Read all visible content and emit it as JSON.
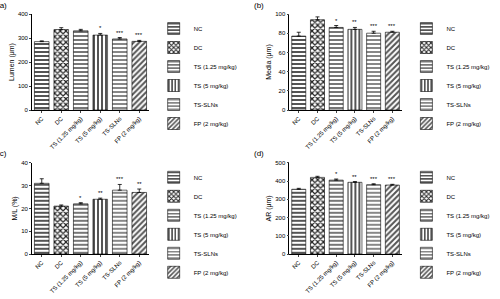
{
  "chart_data": [
    {
      "type": "bar",
      "title": "(a)",
      "y_label": "Lumen (μm)",
      "categories": [
        "NC",
        "DC",
        "TS (1.25 mg/kg)",
        "TS (5 mg/kg)",
        "TS-SLNs",
        "FP (2 mg/kg)"
      ],
      "values": [
        285,
        335,
        330,
        312,
        296,
        286
      ],
      "errors": [
        3,
        8,
        6,
        7,
        6,
        4
      ],
      "significance": [
        null,
        null,
        null,
        "*",
        "***",
        "***"
      ],
      "colors": [
        "#555555",
        "#222222",
        "#777777",
        "#555555",
        "#888888",
        "#555555"
      ],
      "ylim": [
        0,
        400
      ],
      "yticks": [
        0,
        100,
        200,
        300,
        400
      ],
      "grid": false,
      "legend": "right"
    },
    {
      "type": "bar",
      "title": "(b)",
      "y_label": "Media (μm)",
      "categories": [
        "NC",
        "DC",
        "TS (1.25 mg/kg)",
        "TS (5 mg/kg)",
        "TS-SLNs",
        "FP (2 mg/kg)"
      ],
      "values": [
        77,
        94,
        86,
        84,
        80,
        81
      ],
      "errors": [
        4,
        3,
        2,
        2,
        2,
        1
      ],
      "significance": [
        null,
        null,
        "*",
        "**",
        "***",
        "***"
      ],
      "colors": [
        "#555555",
        "#222222",
        "#777777",
        "#555555",
        "#888888",
        "#555555"
      ],
      "ylim": [
        0,
        100
      ],
      "yticks": [
        0,
        20,
        40,
        60,
        80,
        100
      ],
      "grid": false,
      "legend": "right"
    },
    {
      "type": "bar",
      "title": "(c)",
      "y_label": "M/L (%)",
      "categories": [
        "NC",
        "DC",
        "TS (1.25 mg/kg)",
        "TS (5 mg/kg)",
        "TS-SLNs",
        "FP (2 mg/kg)"
      ],
      "values": [
        31,
        21,
        22,
        24,
        28,
        27
      ],
      "errors": [
        2,
        0.5,
        0.5,
        0.5,
        2.5,
        1.5
      ],
      "significance": [
        null,
        null,
        "*",
        "**",
        "***",
        "**"
      ],
      "colors": [
        "#555555",
        "#222222",
        "#777777",
        "#555555",
        "#888888",
        "#555555"
      ],
      "ylim": [
        0,
        40
      ],
      "yticks": [
        0,
        10,
        20,
        30,
        40
      ],
      "grid": false,
      "legend": "right"
    },
    {
      "type": "bar",
      "title": "(d)",
      "y_label": "AR (μm)",
      "categories": [
        "NC",
        "DC",
        "TS (1.25 mg/kg)",
        "TS (5 mg/kg)",
        "TS-SLNs",
        "FP (2 mg/kg)"
      ],
      "values": [
        355,
        420,
        405,
        393,
        380,
        378
      ],
      "errors": [
        5,
        6,
        6,
        4,
        5,
        4
      ],
      "significance": [
        null,
        null,
        "*",
        "**",
        "***",
        "***"
      ],
      "colors": [
        "#555555",
        "#222222",
        "#777777",
        "#555555",
        "#888888",
        "#555555"
      ],
      "ylim": [
        0,
        500
      ],
      "yticks": [
        0,
        100,
        200,
        300,
        400,
        500
      ],
      "grid": false,
      "legend": "right"
    }
  ]
}
